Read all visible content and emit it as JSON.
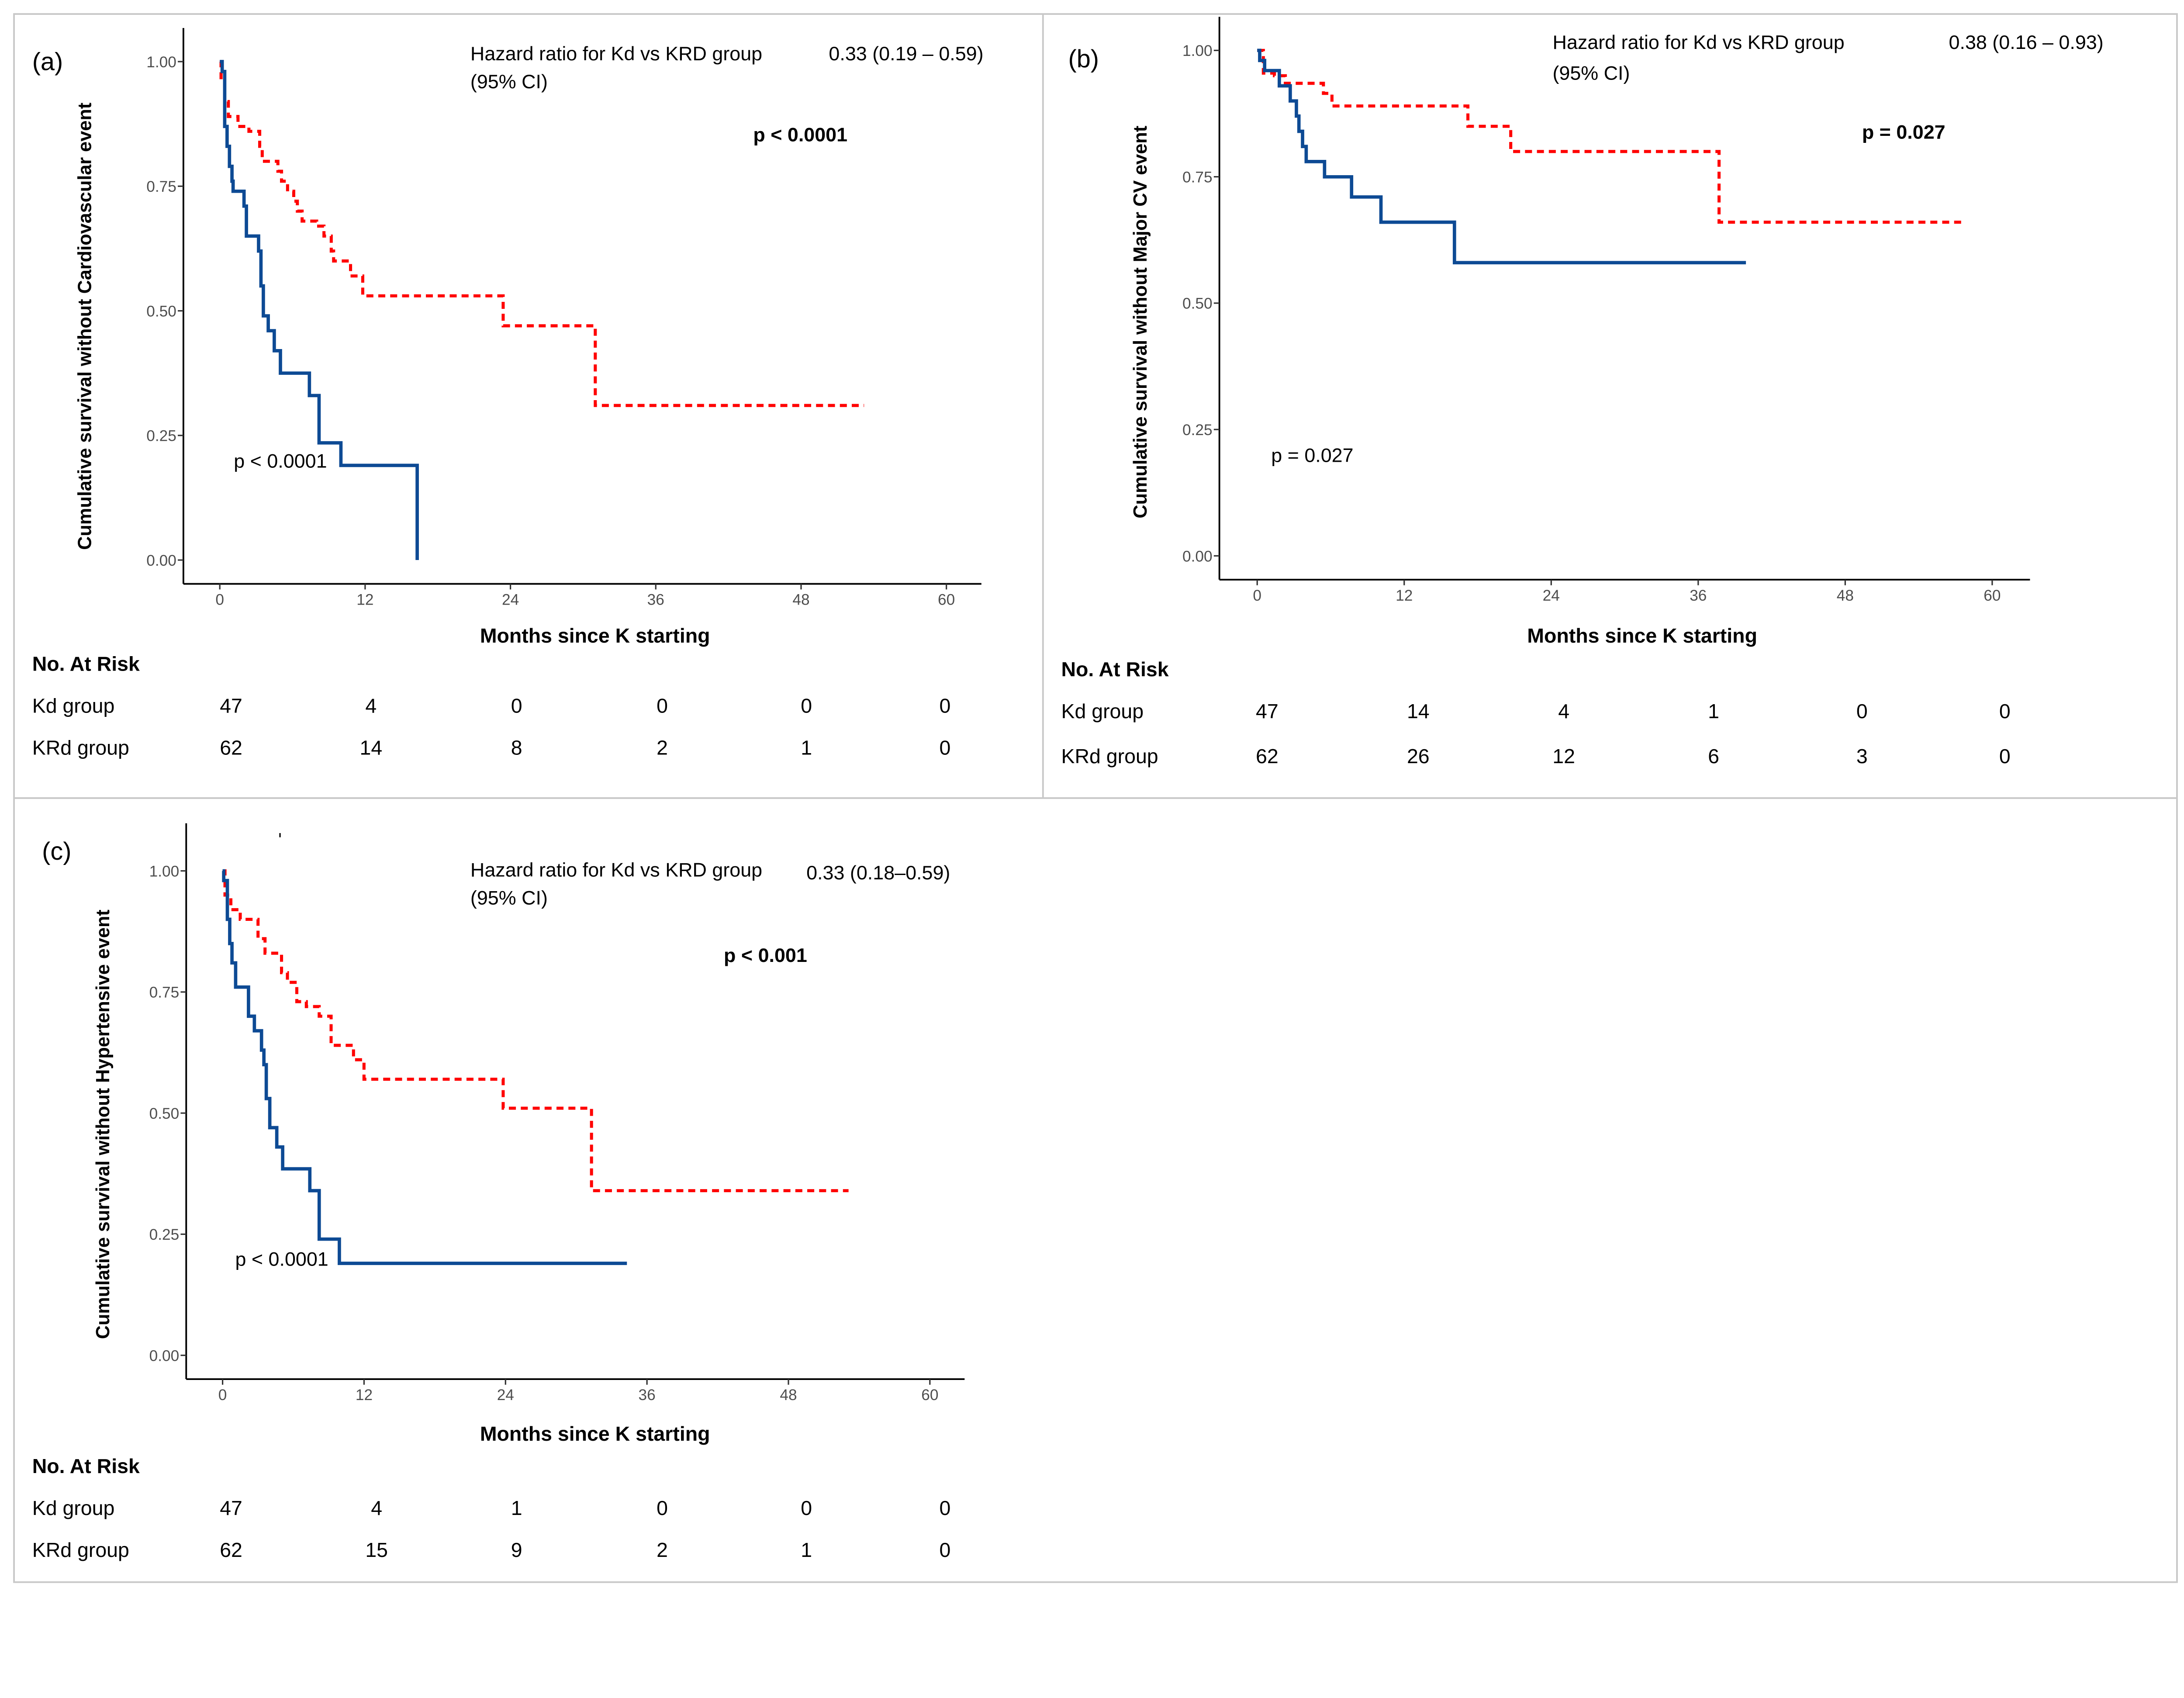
{
  "panels": [
    {
      "label": "(a)",
      "y_title": "Cumulative survival without Cardiovascular event",
      "x_title": "Months since K starting",
      "hr_label": "Hazard ratio for Kd vs KRD group",
      "hr_ci_label": "(95% CI)",
      "hr_value": "0.33 (0.19 – 0.59)",
      "p_bold": "p < 0.0001",
      "p_plot": "p < 0.0001",
      "risk_title": "No. At Risk",
      "risk_rows": [
        {
          "group": "Kd group",
          "values": [
            "47",
            "4",
            "0",
            "0",
            "0",
            "0"
          ]
        },
        {
          "group": "KRd group",
          "values": [
            "62",
            "14",
            "8",
            "2",
            "1",
            "0"
          ]
        }
      ]
    },
    {
      "label": "(b)",
      "y_title": "Cumulative survival without Major CV event",
      "x_title": "Months since K starting",
      "hr_label": "Hazard ratio for Kd vs KRD group",
      "hr_ci_label": "(95% CI)",
      "hr_value": "0.38 (0.16 – 0.93)",
      "p_bold": "p = 0.027",
      "p_plot": "p = 0.027",
      "risk_title": "No. At Risk",
      "risk_rows": [
        {
          "group": "Kd group",
          "values": [
            "47",
            "14",
            "4",
            "1",
            "0",
            "0"
          ]
        },
        {
          "group": "KRd group",
          "values": [
            "62",
            "26",
            "12",
            "6",
            "3",
            "0"
          ]
        }
      ]
    },
    {
      "label": "(c)",
      "y_title": "Cumulative survival without Hypertensive event",
      "x_title": "Months since K starting",
      "hr_label": "Hazard ratio for Kd vs KRD group",
      "hr_ci_label": "(95% CI)",
      "hr_value": "0.33 (0.18–0.59)",
      "p_bold": "p < 0.001",
      "p_plot": "p < 0.0001",
      "risk_title": "No. At Risk",
      "risk_rows": [
        {
          "group": "Kd group",
          "values": [
            "47",
            "4",
            "1",
            "0",
            "0",
            "0"
          ]
        },
        {
          "group": "KRd group",
          "values": [
            "62",
            "15",
            "9",
            "2",
            "1",
            "0"
          ]
        }
      ]
    }
  ],
  "chart_data": [
    {
      "type": "line",
      "subtype": "kaplan-meier step",
      "title": "(a)",
      "xlabel": "Months since K starting",
      "ylabel": "Cumulative survival without Cardiovascular event",
      "xlim": [
        0,
        60
      ],
      "ylim": [
        0,
        1
      ],
      "xticks": [
        "0",
        "12",
        "24",
        "36",
        "48",
        "60"
      ],
      "yticks": [
        "0.00",
        "0.25",
        "0.50",
        "0.75",
        "1.00"
      ],
      "grid": false,
      "series": [
        {
          "group": "Kd",
          "color": "#0d4a94",
          "dash": "solid",
          "points": [
            [
              0,
              1.0
            ],
            [
              0.2,
              0.98
            ],
            [
              0.4,
              0.87
            ],
            [
              0.6,
              0.83
            ],
            [
              0.8,
              0.79
            ],
            [
              1.0,
              0.76
            ],
            [
              1.1,
              0.74
            ],
            [
              2.0,
              0.71
            ],
            [
              2.2,
              0.65
            ],
            [
              3.2,
              0.62
            ],
            [
              3.4,
              0.55
            ],
            [
              3.6,
              0.49
            ],
            [
              4.0,
              0.46
            ],
            [
              4.5,
              0.42
            ],
            [
              5.0,
              0.375
            ],
            [
              7.4,
              0.33
            ],
            [
              8.2,
              0.235
            ],
            [
              10.0,
              0.19
            ],
            [
              16.3,
              0.0
            ]
          ]
        },
        {
          "group": "KRd",
          "color": "#ff0000",
          "dash": "dashed",
          "points": [
            [
              0,
              1.0
            ],
            [
              0.1,
              0.96
            ],
            [
              0.4,
              0.92
            ],
            [
              0.7,
              0.89
            ],
            [
              1.5,
              0.87
            ],
            [
              2.4,
              0.86
            ],
            [
              3.3,
              0.83
            ],
            [
              3.5,
              0.8
            ],
            [
              4.8,
              0.78
            ],
            [
              5.1,
              0.76
            ],
            [
              5.6,
              0.74
            ],
            [
              6.1,
              0.72
            ],
            [
              6.4,
              0.7
            ],
            [
              6.8,
              0.68
            ],
            [
              8.0,
              0.67
            ],
            [
              8.6,
              0.65
            ],
            [
              9.2,
              0.62
            ],
            [
              9.4,
              0.6
            ],
            [
              10.8,
              0.57
            ],
            [
              11.8,
              0.53
            ],
            [
              23.4,
              0.47
            ],
            [
              31.0,
              0.31
            ],
            [
              53.2,
              0.31
            ]
          ]
        }
      ]
    },
    {
      "type": "line",
      "subtype": "kaplan-meier step",
      "title": "(b)",
      "xlabel": "Months since K starting",
      "ylabel": "Cumulative survival without Major CV event",
      "xlim": [
        0,
        60
      ],
      "ylim": [
        0,
        1
      ],
      "xticks": [
        "0",
        "12",
        "24",
        "36",
        "48",
        "60"
      ],
      "yticks": [
        "0.00",
        "0.25",
        "0.50",
        "0.75",
        "1.00"
      ],
      "grid": false,
      "series": [
        {
          "group": "Kd",
          "color": "#0d4a94",
          "dash": "solid",
          "points": [
            [
              0,
              1.0
            ],
            [
              0.2,
              0.98
            ],
            [
              0.6,
              0.96
            ],
            [
              1.8,
              0.93
            ],
            [
              2.7,
              0.9
            ],
            [
              3.2,
              0.87
            ],
            [
              3.4,
              0.84
            ],
            [
              3.7,
              0.81
            ],
            [
              4.0,
              0.78
            ],
            [
              5.5,
              0.75
            ],
            [
              7.7,
              0.71
            ],
            [
              10.1,
              0.66
            ],
            [
              16.1,
              0.58
            ],
            [
              39.9,
              0.58
            ]
          ]
        },
        {
          "group": "KRd",
          "color": "#ff0000",
          "dash": "dashed",
          "points": [
            [
              0,
              1.0
            ],
            [
              0.5,
              0.955
            ],
            [
              1.4,
              0.95
            ],
            [
              2.3,
              0.935
            ],
            [
              5.4,
              0.915
            ],
            [
              6.1,
              0.89
            ],
            [
              17.2,
              0.85
            ],
            [
              20.7,
              0.8
            ],
            [
              37.7,
              0.66
            ],
            [
              57.6,
              0.66
            ]
          ]
        }
      ]
    },
    {
      "type": "line",
      "subtype": "kaplan-meier step",
      "title": "(c)",
      "xlabel": "Months since K starting",
      "ylabel": "Cumulative survival without Hypertensive event",
      "xlim": [
        0,
        60
      ],
      "ylim": [
        0,
        1
      ],
      "xticks": [
        "0",
        "12",
        "24",
        "36",
        "48",
        "60"
      ],
      "yticks": [
        "0.00",
        "0.25",
        "0.50",
        "0.75",
        "1.00"
      ],
      "grid": false,
      "series": [
        {
          "group": "Kd",
          "color": "#0d4a94",
          "dash": "solid",
          "points": [
            [
              0,
              1.0
            ],
            [
              0.1,
              0.98
            ],
            [
              0.4,
              0.9
            ],
            [
              0.6,
              0.85
            ],
            [
              0.8,
              0.81
            ],
            [
              1.1,
              0.76
            ],
            [
              2.2,
              0.7
            ],
            [
              2.7,
              0.67
            ],
            [
              3.3,
              0.63
            ],
            [
              3.5,
              0.6
            ],
            [
              3.7,
              0.53
            ],
            [
              4.0,
              0.47
            ],
            [
              4.6,
              0.43
            ],
            [
              5.1,
              0.385
            ],
            [
              7.4,
              0.34
            ],
            [
              8.2,
              0.24
            ],
            [
              9.9,
              0.19
            ],
            [
              34.3,
              0.19
            ]
          ]
        },
        {
          "group": "KRd",
          "color": "#ff0000",
          "dash": "dashed",
          "points": [
            [
              0,
              1.0
            ],
            [
              0.2,
              0.95
            ],
            [
              0.7,
              0.92
            ],
            [
              1.5,
              0.9
            ],
            [
              3.0,
              0.86
            ],
            [
              3.6,
              0.83
            ],
            [
              5.0,
              0.79
            ],
            [
              5.5,
              0.77
            ],
            [
              6.3,
              0.73
            ],
            [
              7.1,
              0.72
            ],
            [
              8.2,
              0.7
            ],
            [
              9.2,
              0.64
            ],
            [
              11.1,
              0.61
            ],
            [
              12.0,
              0.57
            ],
            [
              23.8,
              0.51
            ],
            [
              31.3,
              0.34
            ],
            [
              53.1,
              0.34
            ]
          ]
        }
      ]
    }
  ]
}
